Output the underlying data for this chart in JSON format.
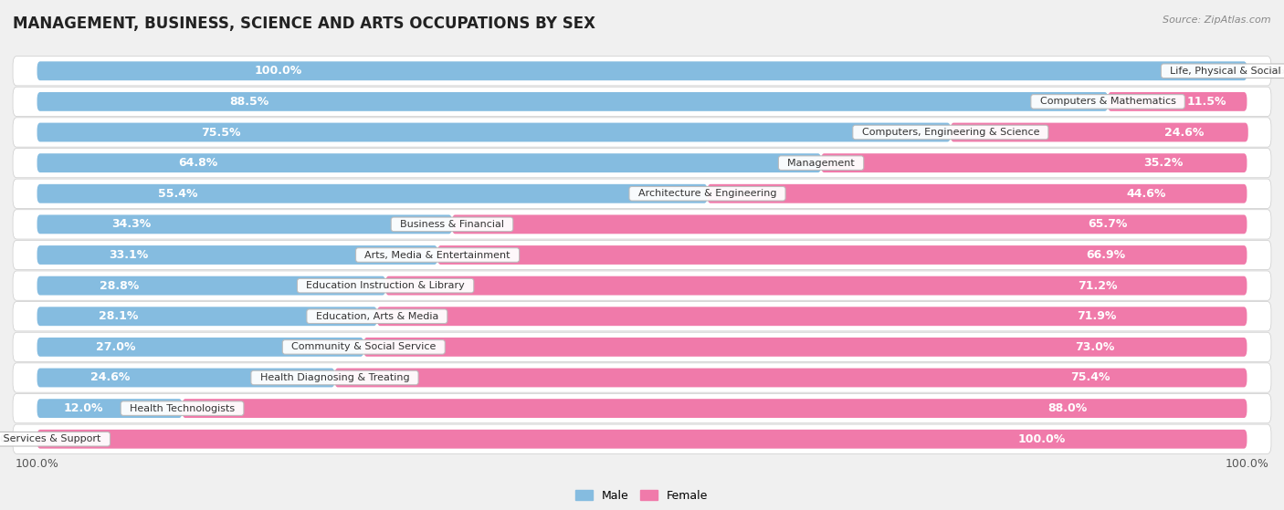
{
  "title": "MANAGEMENT, BUSINESS, SCIENCE AND ARTS OCCUPATIONS BY SEX",
  "source": "Source: ZipAtlas.com",
  "categories": [
    "Life, Physical & Social Science",
    "Computers & Mathematics",
    "Computers, Engineering & Science",
    "Management",
    "Architecture & Engineering",
    "Business & Financial",
    "Arts, Media & Entertainment",
    "Education Instruction & Library",
    "Education, Arts & Media",
    "Community & Social Service",
    "Health Diagnosing & Treating",
    "Health Technologists",
    "Legal Services & Support"
  ],
  "male_pct": [
    100.0,
    88.5,
    75.5,
    64.8,
    55.4,
    34.3,
    33.1,
    28.8,
    28.1,
    27.0,
    24.6,
    12.0,
    0.0
  ],
  "female_pct": [
    0.0,
    11.5,
    24.6,
    35.2,
    44.6,
    65.7,
    66.9,
    71.2,
    71.9,
    73.0,
    75.4,
    88.0,
    100.0
  ],
  "male_color": "#85bce0",
  "female_color": "#f07aaa",
  "bar_height": 0.62,
  "bg_color": "#f0f0f0",
  "row_bg_even": "#f8f8f8",
  "row_bg_odd": "#ececec",
  "title_fontsize": 12,
  "tick_fontsize": 9,
  "label_fontsize": 9,
  "cat_label_fontsize": 8,
  "legend_fontsize": 9,
  "source_fontsize": 8
}
